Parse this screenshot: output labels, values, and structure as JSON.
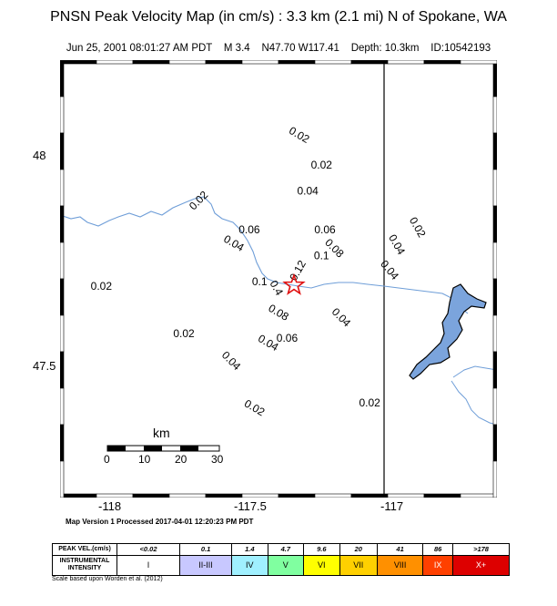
{
  "header": {
    "title": "PNSN Peak Velocity Map (in cm/s) : 3.3 km (2.1 mi) N of Spokane, WA",
    "date": "Jun 25, 2001 08:01:27 AM PDT",
    "magnitude": "M 3.4",
    "location": "N47.70 W117.41",
    "depth": "Depth: 10.3km",
    "event_id": "ID:10542193"
  },
  "map": {
    "x_ticks": [
      "-118",
      "-117.5",
      "-117"
    ],
    "y_ticks": [
      "48",
      "47.5"
    ],
    "epicenter": {
      "lon": -117.41,
      "lat": 47.7,
      "symbol": "star-icon"
    },
    "contour_labels": [
      {
        "text": "0.02",
        "lon": -117.4,
        "lat": 48.04
      },
      {
        "text": "0.02",
        "lon": -117.33,
        "lat": 47.97
      },
      {
        "text": "0.04",
        "lon": -117.37,
        "lat": 47.91
      },
      {
        "text": "0.02",
        "lon": -117.68,
        "lat": 47.89
      },
      {
        "text": "0.02",
        "lon": -117.06,
        "lat": 47.83
      },
      {
        "text": "0.06",
        "lon": -117.54,
        "lat": 47.82
      },
      {
        "text": "0.04",
        "lon": -117.59,
        "lat": 47.79
      },
      {
        "text": "0.06",
        "lon": -117.32,
        "lat": 47.82
      },
      {
        "text": "0.04",
        "lon": -117.12,
        "lat": 47.79
      },
      {
        "text": "0.08",
        "lon": -117.3,
        "lat": 47.78
      },
      {
        "text": "0.1",
        "lon": -117.33,
        "lat": 47.76
      },
      {
        "text": "0.12",
        "lon": -117.39,
        "lat": 47.73
      },
      {
        "text": "0.04",
        "lon": -117.14,
        "lat": 47.73
      },
      {
        "text": "0.1",
        "lon": -117.51,
        "lat": 47.7
      },
      {
        "text": "0.4",
        "lon": -117.47,
        "lat": 47.69
      },
      {
        "text": "0.02",
        "lon": -117.97,
        "lat": 47.69
      },
      {
        "text": "0.08",
        "lon": -117.46,
        "lat": 47.63
      },
      {
        "text": "0.04",
        "lon": -117.28,
        "lat": 47.62
      },
      {
        "text": "0.02",
        "lon": -117.73,
        "lat": 47.58
      },
      {
        "text": "0.04",
        "lon": -117.49,
        "lat": 47.56
      },
      {
        "text": "0.06",
        "lon": -117.43,
        "lat": 47.57
      },
      {
        "text": "0.04",
        "lon": -117.6,
        "lat": 47.52
      },
      {
        "text": "0.02",
        "lon": -117.19,
        "lat": 47.42
      },
      {
        "text": "0.02",
        "lon": -117.53,
        "lat": 47.41
      }
    ]
  },
  "scale_bar": {
    "unit": "km",
    "ticks": [
      "0",
      "10",
      "20",
      "30"
    ]
  },
  "processed_note": "Map Version 1 Processed 2017-04-01 12:20:23 PM PDT",
  "legend": {
    "peak_vel_label": "PEAK VEL.(cm/s)",
    "intensity_label_line1": "INSTRUMENTAL",
    "intensity_label_line2": "INTENSITY",
    "values": [
      "<0.02",
      "0.1",
      "1.4",
      "4.7",
      "9.6",
      "20",
      "41",
      "86",
      ">178"
    ],
    "intensities": [
      "I",
      "II-III",
      "IV",
      "V",
      "VI",
      "VII",
      "VIII",
      "IX",
      "X+"
    ],
    "colors": [
      "#ffffff",
      "#c8c8ff",
      "#a0f0ff",
      "#80ffa0",
      "#ffff00",
      "#ffd000",
      "#ff9000",
      "#ff4000",
      "#dd0000"
    ],
    "note": "Scale based upon Worden et al. (2012)"
  },
  "colors": {
    "river": "#6f9ed8",
    "lake_fill": "#7ba4dc",
    "epicenter": "#e01010"
  }
}
